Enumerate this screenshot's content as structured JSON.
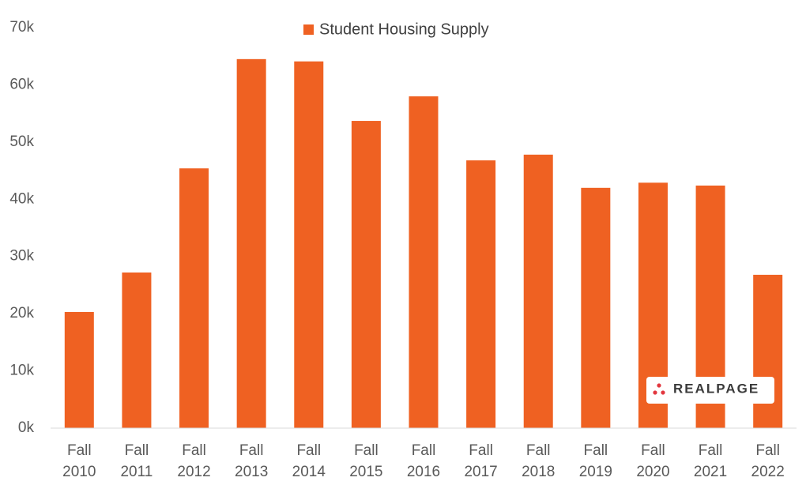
{
  "chart_data": {
    "type": "bar",
    "categories": [
      "Fall 2010",
      "Fall 2011",
      "Fall 2012",
      "Fall 2013",
      "Fall 2014",
      "Fall 2015",
      "Fall 2016",
      "Fall 2017",
      "Fall 2018",
      "Fall 2019",
      "Fall 2020",
      "Fall 2021",
      "Fall 2022"
    ],
    "series": [
      {
        "name": "Student Housing Supply",
        "color": "#ef6122",
        "values": [
          20300,
          27200,
          45400,
          64500,
          64100,
          53700,
          58000,
          46800,
          47800,
          42000,
          42900,
          42400,
          26800
        ]
      }
    ],
    "ylim": [
      0,
      70000
    ],
    "yticks": [
      {
        "value": 0,
        "label": "0k"
      },
      {
        "value": 10000,
        "label": "10k"
      },
      {
        "value": 20000,
        "label": "20k"
      },
      {
        "value": 30000,
        "label": "30k"
      },
      {
        "value": 40000,
        "label": "40k"
      },
      {
        "value": 50000,
        "label": "50k"
      },
      {
        "value": 60000,
        "label": "60k"
      },
      {
        "value": 70000,
        "label": "70k"
      }
    ],
    "grid": false,
    "legend": "top",
    "logo": "REALPAGE"
  }
}
